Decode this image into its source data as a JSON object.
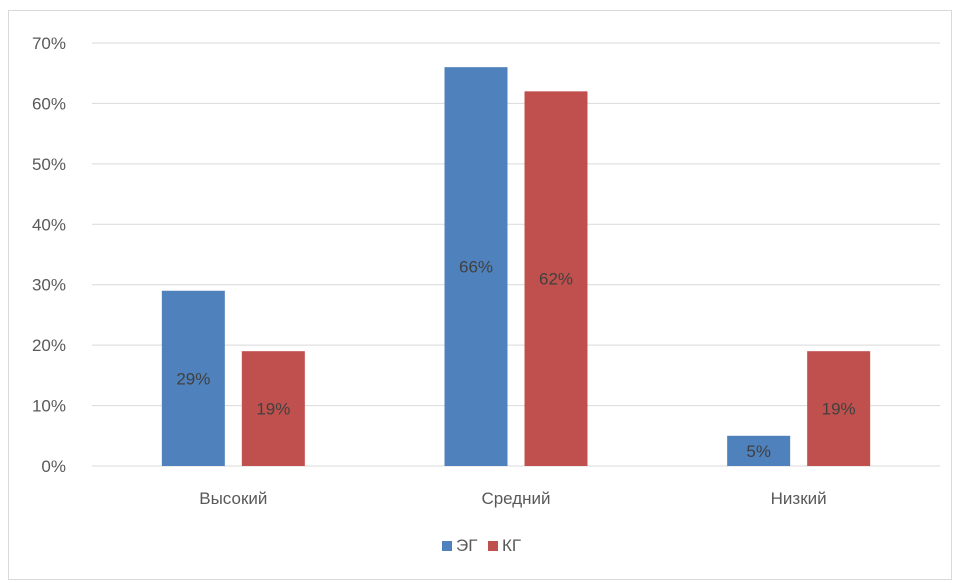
{
  "chart_data": {
    "type": "bar",
    "categories": [
      "Высокий",
      "Средний",
      "Низкий"
    ],
    "series": [
      {
        "name": "ЭГ",
        "values": [
          29,
          66,
          5
        ],
        "labels": [
          "29%",
          "66%",
          "5%"
        ],
        "color": "#4f81bd"
      },
      {
        "name": "КГ",
        "values": [
          19,
          62,
          19
        ],
        "labels": [
          "19%",
          "62%",
          "19%"
        ],
        "color": "#c0504d"
      }
    ],
    "y_ticks": [
      "0%",
      "10%",
      "20%",
      "30%",
      "40%",
      "50%",
      "60%",
      "70%"
    ],
    "ylim": [
      0,
      70
    ],
    "grid": true,
    "legend_position": "bottom",
    "title": "",
    "xlabel": "",
    "ylabel": ""
  }
}
